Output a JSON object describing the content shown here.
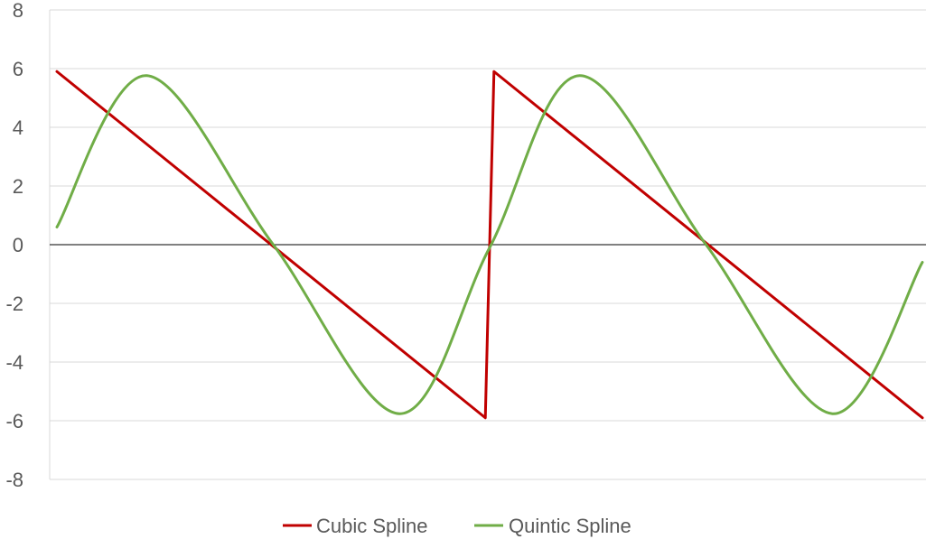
{
  "chart_data": {
    "type": "line",
    "title": "",
    "xlabel": "",
    "ylabel": "",
    "ylim": [
      -8,
      8
    ],
    "yticks": [
      8,
      6,
      4,
      2,
      0,
      -2,
      -4,
      -6,
      -8
    ],
    "ytick_labels": [
      "8",
      "6",
      "4",
      "2",
      "0",
      "-2",
      "-4",
      "-6",
      "-8"
    ],
    "grid": true,
    "legend_position": "bottom",
    "series": [
      {
        "name": "Cubic Spline",
        "color": "#C00000",
        "points": [
          [
            0,
            5.9
          ],
          [
            0.495,
            -5.9
          ],
          [
            0.505,
            5.9
          ],
          [
            1.0,
            -5.9
          ]
        ]
      },
      {
        "name": "Quintic Spline",
        "color": "#70AD47",
        "points": [
          [
            0,
            0.6
          ],
          [
            0.104,
            5.76
          ],
          [
            0.25,
            0.0
          ],
          [
            0.396,
            -5.76
          ],
          [
            0.5,
            -0.1
          ],
          [
            0.604,
            5.76
          ],
          [
            0.75,
            0.0
          ],
          [
            0.896,
            -5.76
          ],
          [
            1.0,
            -0.6
          ]
        ]
      }
    ]
  }
}
